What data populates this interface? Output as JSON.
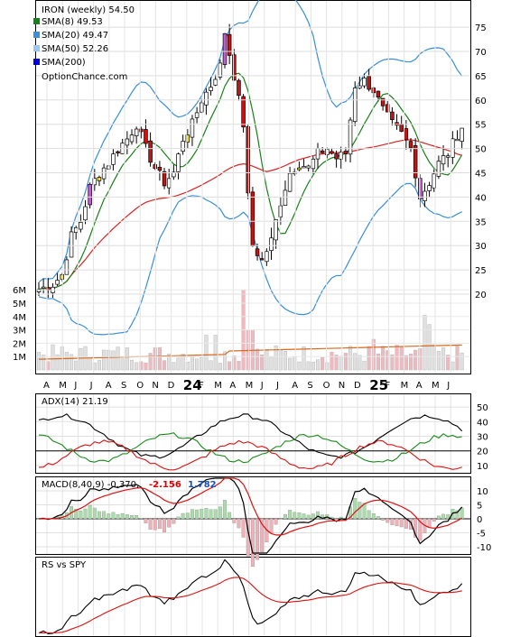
{
  "chart_data": {
    "type": "candlestick",
    "ticker_label": "IRON (weekly) 54.50",
    "brand": "OptionChance.com",
    "legend": [
      {
        "label": "SMA(8) 49.53",
        "color": "#1a7f1a"
      },
      {
        "label": "SMA(20) 49.47",
        "color": "#3a8fd8"
      },
      {
        "label": "SMA(50) 52.26",
        "color": "#9cc8f0"
      },
      {
        "label": "SMA(200)",
        "color": "#0000dd"
      }
    ],
    "price_axis": {
      "min": 15,
      "max": 80,
      "ticks": [
        20,
        25,
        30,
        35,
        40,
        45,
        50,
        55,
        60,
        65,
        70,
        75
      ]
    },
    "volume_axis": {
      "ticks": [
        "1M",
        "2M",
        "3M",
        "4M",
        "5M",
        "6M"
      ],
      "tick_values": [
        1,
        2,
        3,
        4,
        5,
        6
      ]
    },
    "x_labels": [
      {
        "t": "A",
        "big": false
      },
      {
        "t": "M",
        "big": false
      },
      {
        "t": "J",
        "big": false
      },
      {
        "t": "J",
        "big": false
      },
      {
        "t": "A",
        "big": false
      },
      {
        "t": "S",
        "big": false
      },
      {
        "t": "O",
        "big": false
      },
      {
        "t": "N",
        "big": false
      },
      {
        "t": "D",
        "big": false
      },
      {
        "t": "24",
        "big": true
      },
      {
        "t": "F",
        "big": false
      },
      {
        "t": "M",
        "big": false
      },
      {
        "t": "A",
        "big": false
      },
      {
        "t": "M",
        "big": false
      },
      {
        "t": "J",
        "big": false
      },
      {
        "t": "J",
        "big": false
      },
      {
        "t": "A",
        "big": false
      },
      {
        "t": "S",
        "big": false
      },
      {
        "t": "O",
        "big": false
      },
      {
        "t": "N",
        "big": false
      },
      {
        "t": "D",
        "big": false
      },
      {
        "t": "25",
        "big": true
      },
      {
        "t": "F",
        "big": false
      },
      {
        "t": "M",
        "big": false
      },
      {
        "t": "A",
        "big": false
      },
      {
        "t": "M",
        "big": false
      },
      {
        "t": "J",
        "big": false
      }
    ],
    "price_anchors": [
      [
        0,
        21
      ],
      [
        3,
        22
      ],
      [
        5,
        24
      ],
      [
        7,
        32
      ],
      [
        9,
        35
      ],
      [
        11,
        42
      ],
      [
        13,
        45
      ],
      [
        15,
        47
      ],
      [
        17,
        50
      ],
      [
        19,
        52
      ],
      [
        21,
        55
      ],
      [
        23,
        50
      ],
      [
        25,
        46
      ],
      [
        27,
        43
      ],
      [
        29,
        45
      ],
      [
        31,
        52
      ],
      [
        33,
        55
      ],
      [
        35,
        60
      ],
      [
        37,
        63
      ],
      [
        39,
        67
      ],
      [
        40,
        74
      ],
      [
        42,
        65
      ],
      [
        44,
        55
      ],
      [
        45,
        40
      ],
      [
        46,
        30
      ],
      [
        48,
        27
      ],
      [
        50,
        31
      ],
      [
        52,
        39
      ],
      [
        54,
        45
      ],
      [
        56,
        47
      ],
      [
        58,
        46
      ],
      [
        60,
        49
      ],
      [
        62,
        50
      ],
      [
        64,
        48
      ],
      [
        66,
        49
      ],
      [
        68,
        63
      ],
      [
        70,
        64
      ],
      [
        72,
        62
      ],
      [
        74,
        58
      ],
      [
        76,
        55
      ],
      [
        78,
        53
      ],
      [
        80,
        50
      ],
      [
        82,
        40
      ],
      [
        84,
        43
      ],
      [
        86,
        47
      ],
      [
        88,
        49
      ],
      [
        90,
        53
      ],
      [
        91,
        54.5
      ]
    ],
    "adx": {
      "label": "ADX(14) 21.19",
      "ticks": [
        10,
        20,
        30,
        40,
        50
      ]
    },
    "macd": {
      "label": "MACD(8,40,9) -0.370,",
      "v1": "-2.156",
      "v2": "1.782",
      "ticks": [
        -10,
        -5,
        0,
        5,
        10
      ]
    },
    "rs": {
      "label": "RS vs SPY"
    }
  }
}
